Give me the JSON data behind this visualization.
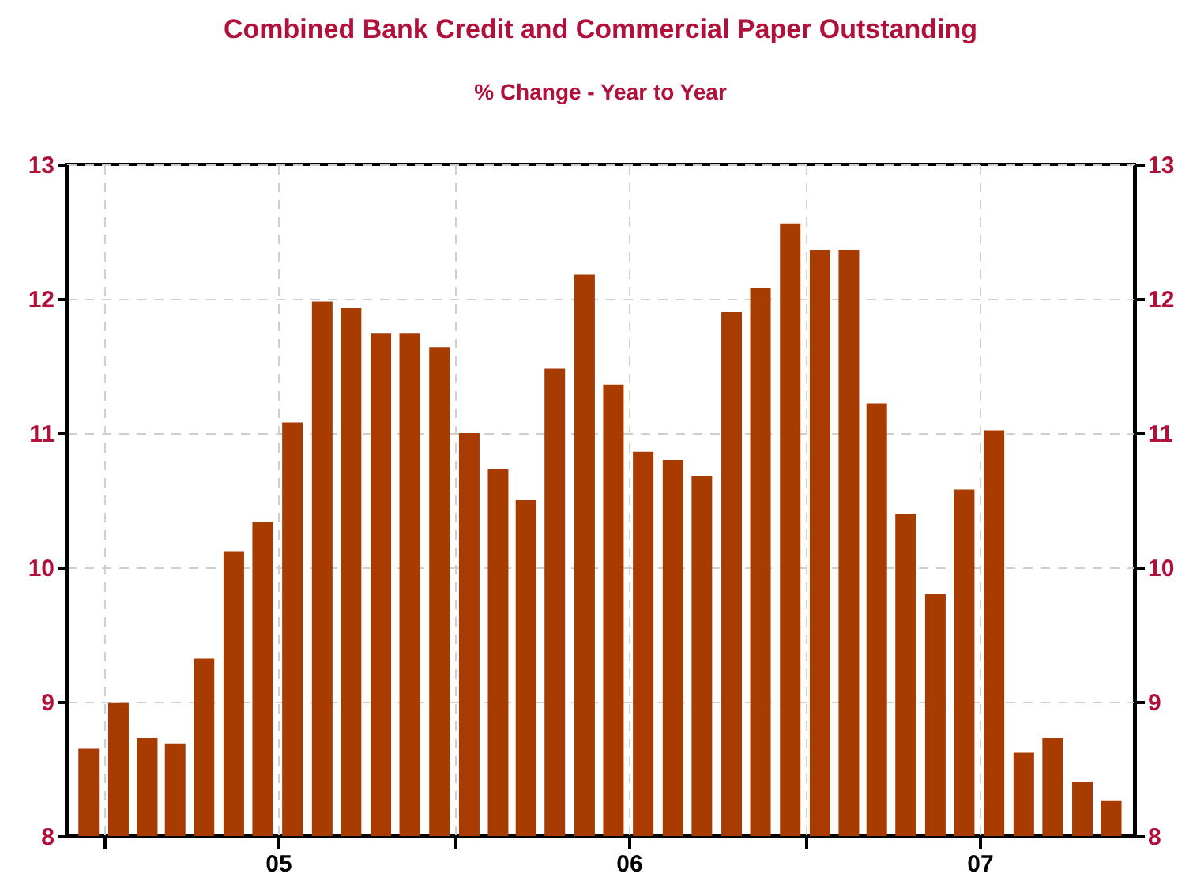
{
  "chart_data": {
    "type": "bar",
    "title": "Combined Bank Credit and Commercial Paper Outstanding",
    "subtitle": "% Change - Year to Year",
    "x": [
      "2004-12-16",
      "2005-01-16",
      "2005-02-15",
      "2005-03-16",
      "2005-04-15",
      "2005-05-16",
      "2005-06-15",
      "2005-07-16",
      "2005-08-16",
      "2005-09-15",
      "2005-10-16",
      "2005-11-15",
      "2005-12-16",
      "2006-01-16",
      "2006-02-15",
      "2006-03-16",
      "2006-04-15",
      "2006-05-16",
      "2006-06-15",
      "2006-07-16",
      "2006-08-16",
      "2006-09-15",
      "2006-10-16",
      "2006-11-15",
      "2006-12-16",
      "2007-01-16",
      "2007-02-15",
      "2007-03-16",
      "2007-04-15",
      "2007-05-16",
      "2007-06-15",
      "2007-07-16",
      "2007-08-16",
      "2007-09-15",
      "2007-10-16",
      "2007-11-15"
    ],
    "values": [
      8.65,
      8.99,
      8.73,
      8.69,
      9.32,
      10.12,
      10.34,
      11.08,
      11.98,
      11.93,
      11.74,
      11.74,
      11.64,
      11.0,
      10.73,
      10.5,
      11.48,
      12.18,
      11.36,
      10.86,
      10.8,
      10.68,
      11.9,
      12.08,
      12.56,
      12.36,
      12.36,
      11.22,
      10.4,
      9.8,
      10.58,
      11.02,
      8.62,
      8.73,
      8.4,
      8.26
    ],
    "color": "#a83c00",
    "xlim": [
      "2004-12-01",
      "2007-12-01"
    ],
    "xticks": [
      {
        "value": "2005-01-01",
        "label": null
      },
      {
        "value": "2005-07-01",
        "label": "05"
      },
      {
        "value": "2006-01-01",
        "label": null
      },
      {
        "value": "2006-07-01",
        "label": "06"
      },
      {
        "value": "2007-01-01",
        "label": null
      },
      {
        "value": "2007-07-01",
        "label": "07"
      }
    ],
    "ylim": [
      8,
      13
    ],
    "yticks": [
      8,
      9,
      10,
      11,
      12,
      13
    ],
    "y2lim": [
      8,
      13
    ],
    "y2ticks": [
      8,
      9,
      10,
      11,
      12,
      13
    ],
    "grid": true
  }
}
